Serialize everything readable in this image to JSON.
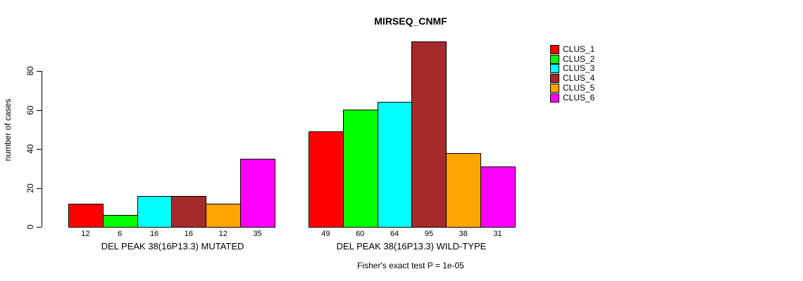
{
  "title": "MIRSEQ_CNMF",
  "caption": "Fisher's exact test P = 1e-05",
  "chart_data": {
    "type": "bar",
    "title": "MIRSEQ_CNMF",
    "xlabel": "",
    "ylabel": "number of cases",
    "ylim": [
      0,
      95
    ],
    "yticks": [
      0,
      20,
      40,
      60,
      80
    ],
    "grid": false,
    "legend_position": "top-right-outside",
    "categories": [
      "DEL PEAK 38(16P13.3) MUTATED",
      "DEL PEAK 38(16P13.3) WILD-TYPE"
    ],
    "series": [
      {
        "name": "CLUS_1",
        "color": "#FF0000",
        "values": [
          12,
          49
        ]
      },
      {
        "name": "CLUS_2",
        "color": "#00FF00",
        "values": [
          6,
          60
        ]
      },
      {
        "name": "CLUS_3",
        "color": "#00FFFF",
        "values": [
          16,
          64
        ]
      },
      {
        "name": "CLUS_4",
        "color": "#A52A2A",
        "values": [
          16,
          95
        ]
      },
      {
        "name": "CLUS_5",
        "color": "#FFA500",
        "values": [
          12,
          38
        ]
      },
      {
        "name": "CLUS_6",
        "color": "#FF00FF",
        "values": [
          35,
          31
        ]
      }
    ],
    "value_labels": {
      "DEL PEAK 38(16P13.3) MUTATED": [
        12,
        6,
        16,
        16,
        12,
        35
      ],
      "DEL PEAK 38(16P13.3) WILD-TYPE": [
        49,
        60,
        64,
        95,
        38,
        31
      ]
    },
    "annotation": "Fisher's exact test P = 1e-05"
  }
}
